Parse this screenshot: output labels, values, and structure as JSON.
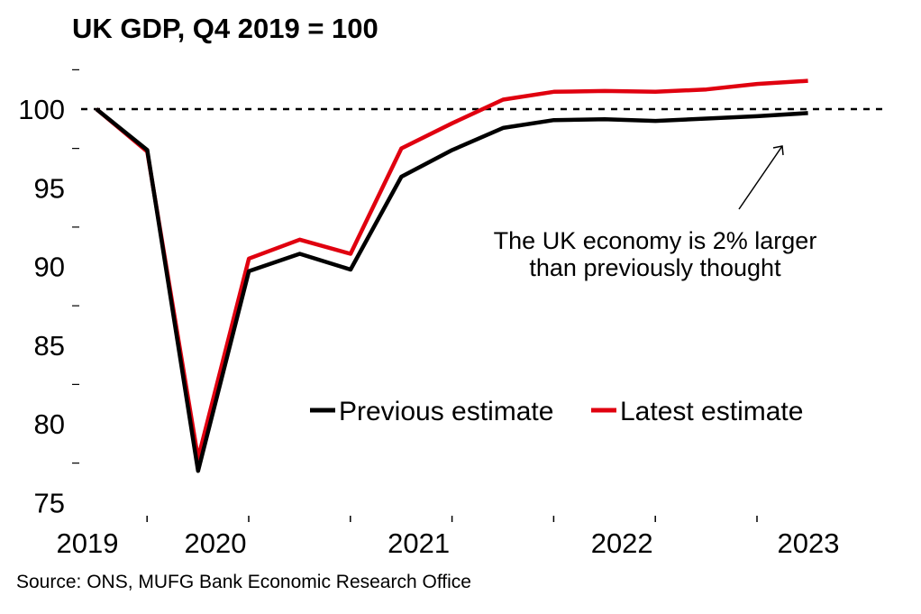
{
  "title": "UK GDP, Q4 2019 = 100",
  "source": "Source: ONS, MUFG Bank Economic Research Office",
  "colors": {
    "previous": "#000000",
    "latest": "#e0000f"
  },
  "annotation": {
    "line1": "The UK economy is 2% larger",
    "line2": "than previously thought"
  },
  "legend": {
    "previous": "Previous estimate",
    "latest": "Latest estimate"
  },
  "chart_data": {
    "type": "line",
    "title": "UK GDP, Q4 2019 = 100",
    "x": [
      "2019 Q4",
      "2020 Q1",
      "2020 Q2",
      "2020 Q3",
      "2020 Q4",
      "2021 Q1",
      "2021 Q2",
      "2021 Q3",
      "2021 Q4",
      "2022 Q1",
      "2022 Q2",
      "2022 Q3",
      "2022 Q4",
      "2023 Q1",
      "2023 Q2"
    ],
    "x_tick_labels": [
      "2019",
      "2020",
      "2021",
      "2022",
      "2023"
    ],
    "y_tick_labels": [
      "75",
      "80",
      "85",
      "90",
      "95",
      "100"
    ],
    "ylim": [
      75,
      102.5
    ],
    "reference_line": 100,
    "series": [
      {
        "name": "Previous estimate",
        "values": [
          100,
          97.4,
          77.0,
          89.7,
          90.8,
          89.8,
          95.7,
          97.4,
          98.8,
          99.3,
          99.35,
          99.25,
          99.4,
          99.55,
          99.75
        ]
      },
      {
        "name": "Latest estimate",
        "values": [
          100,
          97.3,
          77.8,
          90.5,
          91.7,
          90.8,
          97.5,
          99.1,
          100.6,
          101.1,
          101.15,
          101.1,
          101.25,
          101.6,
          101.8
        ]
      }
    ]
  }
}
